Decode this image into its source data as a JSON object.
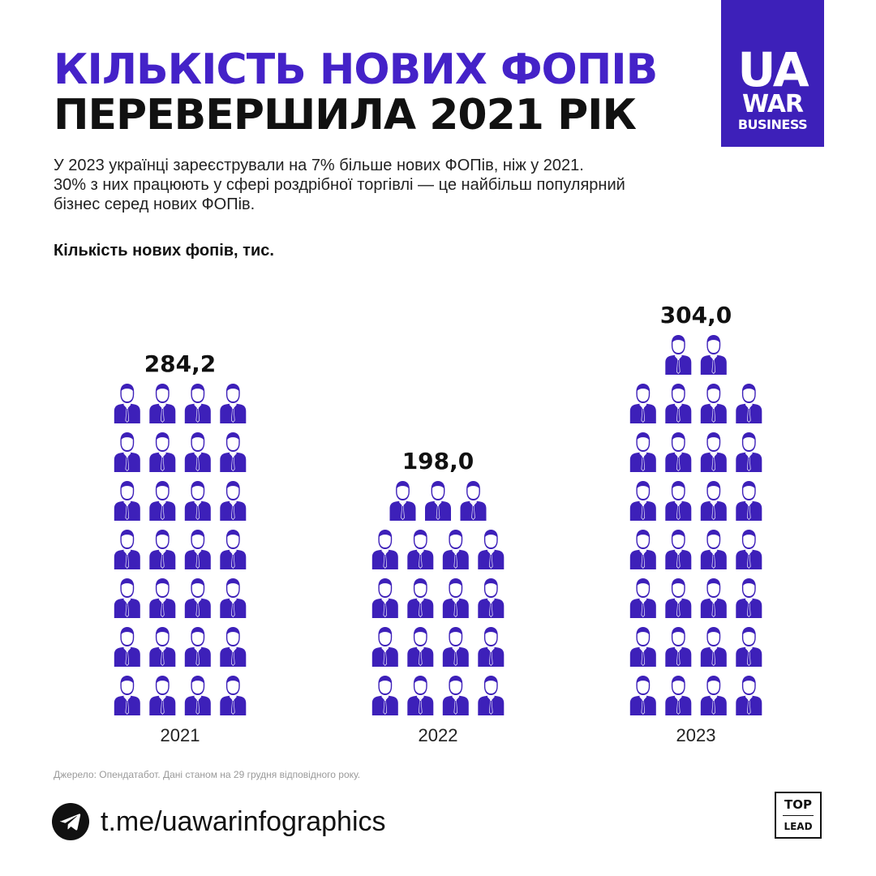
{
  "title": {
    "line1": "КІЛЬКІСТЬ НОВИХ ФОПІВ",
    "line2": "ПЕРЕВЕРШИЛА 2021 РІК"
  },
  "logo": {
    "line1": "UA",
    "line2": "WAR",
    "line3": "BUSINESS"
  },
  "description": [
    "У 2023 українці зареєстрували на 7% більше нових ФОПів, ніж у 2021.",
    "30% з них працюють у сфері роздрібної торгівлі — це найбільш популярний",
    "бізнес серед нових ФОПів."
  ],
  "colors": {
    "accent": "#4422c8",
    "icon": "#3d20b9",
    "text": "#111111"
  },
  "chart_data": {
    "type": "bar",
    "title": "Кількість нових фопів, тис.",
    "categories": [
      "2021",
      "2022",
      "2023"
    ],
    "values": [
      284.2,
      198.0,
      304.0
    ],
    "value_labels": [
      "284,2",
      "198,0",
      "304,0"
    ],
    "icon": "person-with-tie-icon",
    "icon_counts": [
      28,
      19,
      30
    ],
    "grid": false
  },
  "source": "Джерело: Опендатабот. Дані станом на 29 грудня відповідного року.",
  "footer": {
    "link": "t.me/uawarinfographics",
    "link_icon": "telegram-icon"
  },
  "partner": {
    "line1": "TOP",
    "line2": "LEAD"
  }
}
